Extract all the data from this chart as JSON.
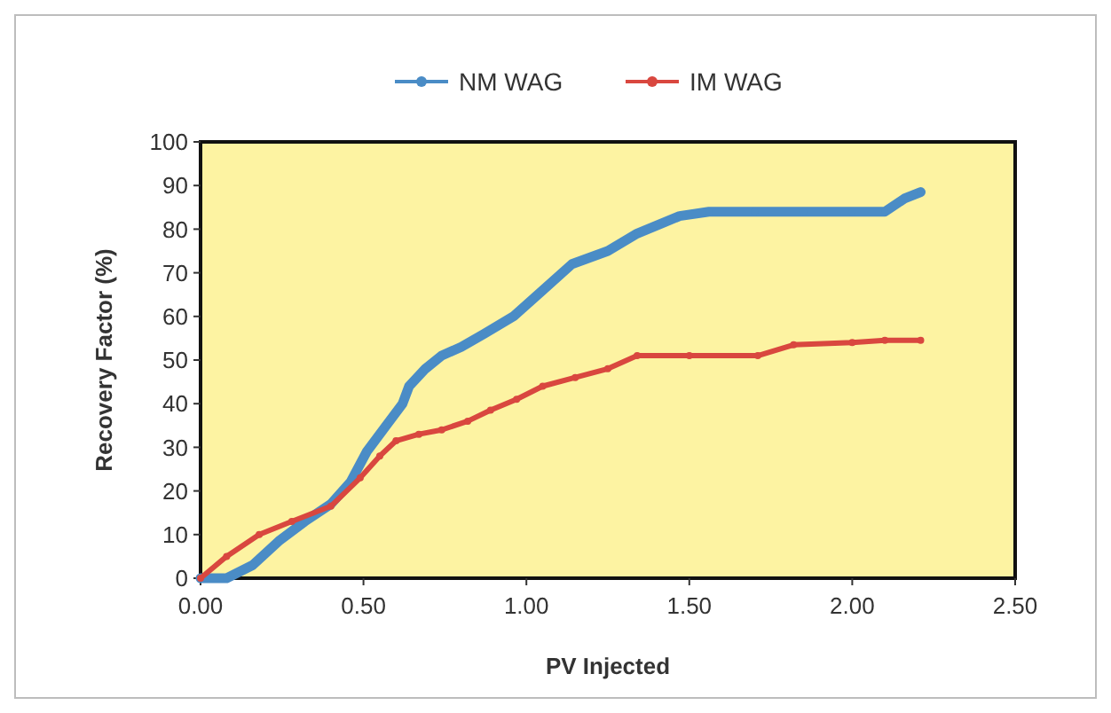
{
  "chart_data": {
    "type": "line",
    "xlabel": "PV Injected",
    "ylabel": "Recovery Factor (%)",
    "legend": "top",
    "grid": false,
    "marker": "circle",
    "line_style": "solid",
    "xlim": [
      0,
      2.5
    ],
    "xticks": [
      {
        "value": 0,
        "label": "0.00"
      },
      {
        "value": 0.5,
        "label": "0.50"
      },
      {
        "value": 1,
        "label": "1.00"
      },
      {
        "value": 1.5,
        "label": "1.50"
      },
      {
        "value": 2,
        "label": "2.00"
      },
      {
        "value": 2.5,
        "label": "2.50"
      }
    ],
    "ylim": [
      0,
      100
    ],
    "yticks": [
      0,
      10,
      20,
      30,
      40,
      50,
      60,
      70,
      80,
      90,
      100
    ],
    "series": [
      {
        "name": "NM WAG",
        "color": "#4a8cc6",
        "x": [
          0,
          0.08,
          0.16,
          0.24,
          0.32,
          0.4,
          0.46,
          0.51,
          0.57,
          0.62,
          0.64,
          0.69,
          0.74,
          0.8,
          0.87,
          0.96,
          1.05,
          1.14,
          1.25,
          1.34,
          1.47,
          1.56,
          1.7,
          1.85,
          2.0,
          2.1,
          2.16,
          2.21
        ],
        "values": [
          0,
          0,
          3,
          8.5,
          13,
          17,
          22,
          29,
          35,
          40,
          44,
          48,
          51,
          53,
          56,
          60,
          66,
          72,
          75,
          79,
          83,
          84,
          84,
          84,
          84,
          84,
          87,
          88.5
        ]
      },
      {
        "name": "IM WAG",
        "color": "#d9473f",
        "x": [
          0,
          0.08,
          0.18,
          0.28,
          0.4,
          0.49,
          0.55,
          0.6,
          0.67,
          0.74,
          0.82,
          0.89,
          0.97,
          1.05,
          1.15,
          1.25,
          1.34,
          1.5,
          1.71,
          1.82,
          2.0,
          2.1,
          2.21
        ],
        "values": [
          0,
          5,
          10,
          13,
          16.5,
          23,
          28,
          31.5,
          33,
          34,
          36,
          38.5,
          41,
          44,
          46,
          48,
          51,
          51,
          51,
          53.5,
          54,
          54.5,
          54.5
        ]
      }
    ]
  }
}
